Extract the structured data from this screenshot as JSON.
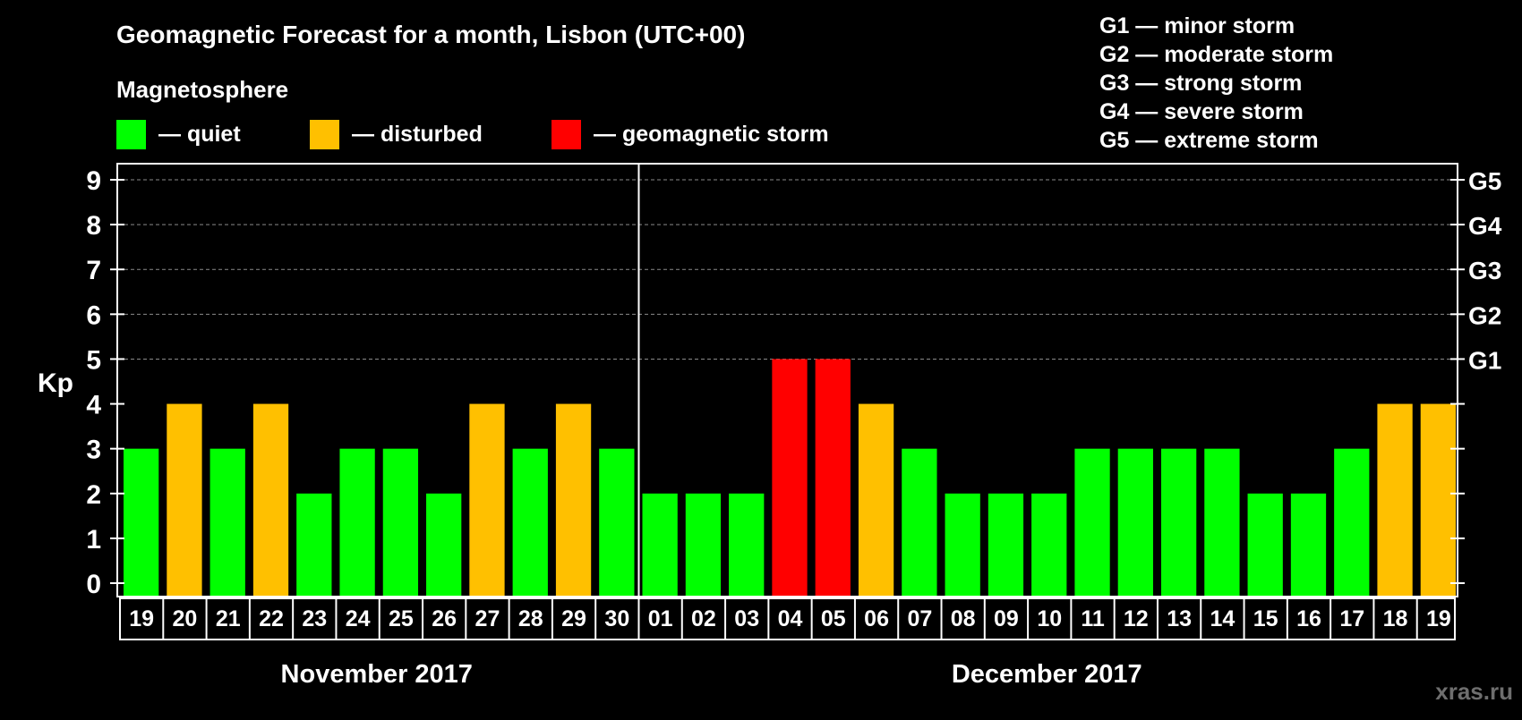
{
  "chart_data": {
    "type": "bar",
    "title": "Geomagnetic Forecast for a month, Lisbon (UTC+00)",
    "ylabel": "Kp",
    "ylim": [
      0,
      9
    ],
    "yticks": [
      0,
      1,
      2,
      3,
      4,
      5,
      6,
      7,
      8,
      9
    ],
    "grid": "dashed horizontal lines at Kp 5-9",
    "categories": [
      "19",
      "20",
      "21",
      "22",
      "23",
      "24",
      "25",
      "26",
      "27",
      "28",
      "29",
      "30",
      "01",
      "02",
      "03",
      "04",
      "05",
      "06",
      "07",
      "08",
      "09",
      "10",
      "11",
      "12",
      "13",
      "14",
      "15",
      "16",
      "17",
      "18",
      "19"
    ],
    "values": [
      3,
      4,
      3,
      4,
      2,
      3,
      3,
      2,
      4,
      3,
      4,
      3,
      2,
      2,
      2,
      5,
      5,
      4,
      3,
      2,
      2,
      2,
      3,
      3,
      3,
      3,
      2,
      2,
      3,
      4,
      4
    ],
    "months": [
      {
        "label": "November 2017",
        "from": 0,
        "to": 11
      },
      {
        "label": "December 2017",
        "from": 12,
        "to": 30
      }
    ],
    "g_labels": [
      {
        "kp": 5,
        "label": "G1"
      },
      {
        "kp": 6,
        "label": "G2"
      },
      {
        "kp": 7,
        "label": "G3"
      },
      {
        "kp": 8,
        "label": "G4"
      },
      {
        "kp": 9,
        "label": "G5"
      }
    ],
    "legend_heading": "Magnetosphere",
    "legend": [
      {
        "label": "— quiet",
        "color": "#00ff00"
      },
      {
        "label": "— disturbed",
        "color": "#ffc000"
      },
      {
        "label": "— geomagnetic storm",
        "color": "#ff0000"
      }
    ],
    "storm_scale": [
      "G1 — minor storm",
      "G2 — moderate storm",
      "G3 — strong storm",
      "G4 — severe storm",
      "G5 — extreme storm"
    ],
    "watermark": "xras.ru"
  }
}
